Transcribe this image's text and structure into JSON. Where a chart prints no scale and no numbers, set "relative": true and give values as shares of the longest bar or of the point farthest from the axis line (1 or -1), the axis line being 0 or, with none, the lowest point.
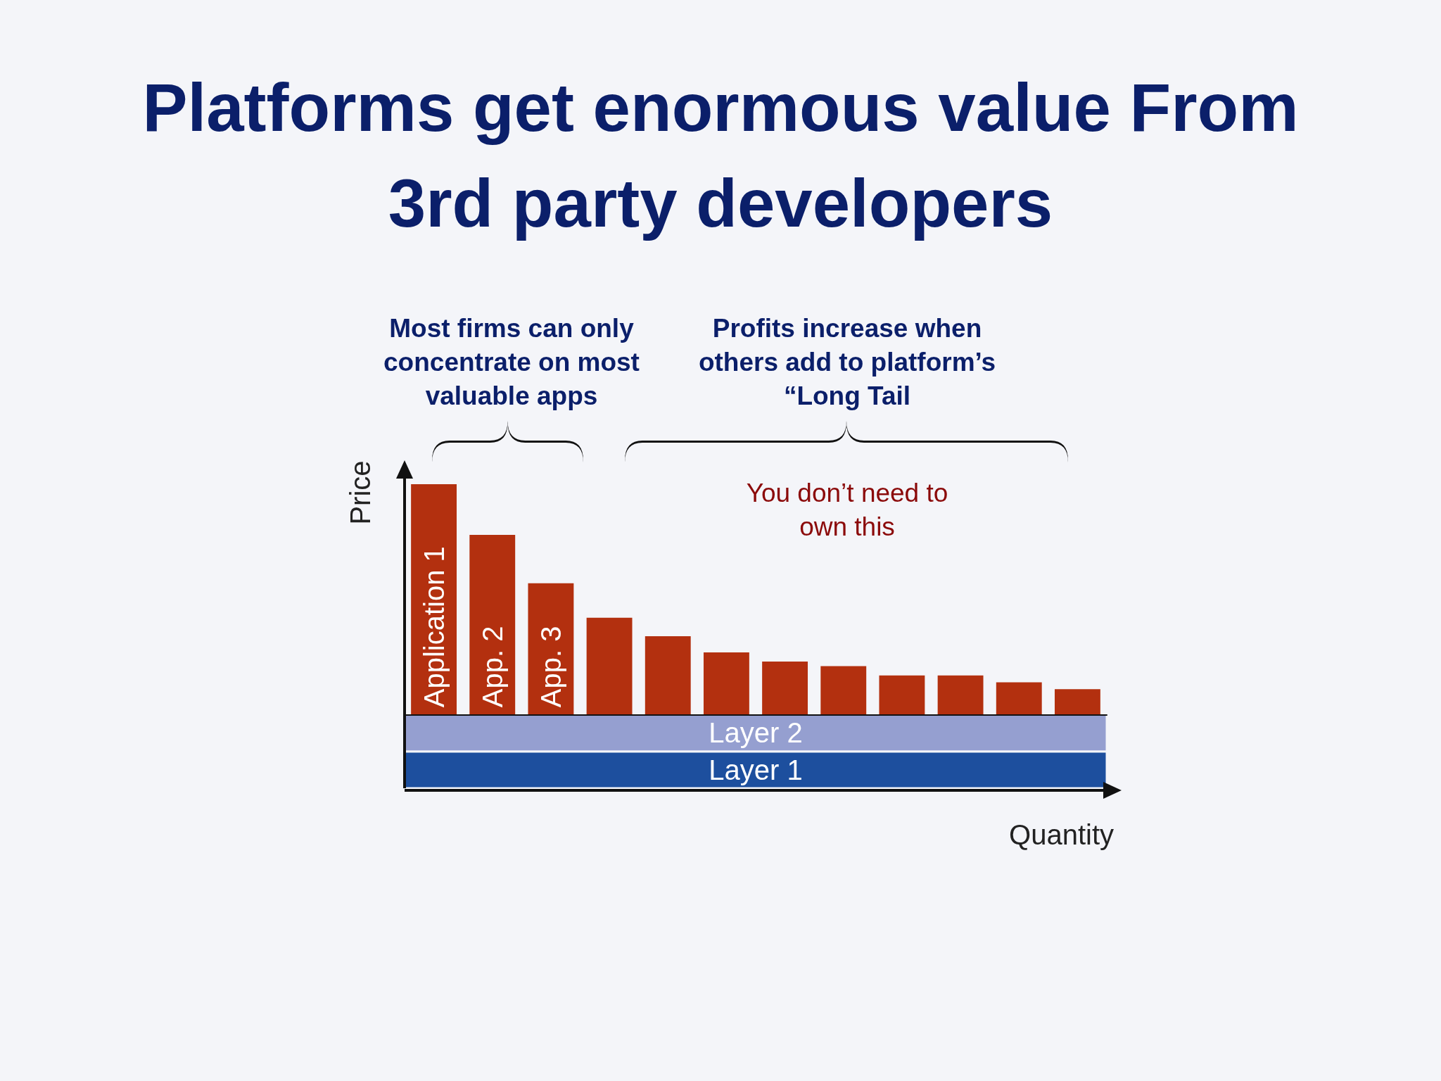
{
  "chart_data": {
    "type": "bar",
    "title": "Platforms get enormous value From 3rd party developers",
    "xlabel": "Quantity",
    "ylabel": "Price",
    "relative": true,
    "tick_labels": false,
    "categories": [
      "Application 1",
      "App. 2",
      "App. 3",
      null,
      null,
      null,
      null,
      null,
      null,
      null,
      null,
      null
    ],
    "values": [
      1,
      0.78,
      0.57,
      0.42,
      0.34,
      0.27,
      0.23,
      0.21,
      0.17,
      0.17,
      0.14,
      0.11
    ],
    "color": "#b3300f",
    "bands": [
      {
        "axis": "y",
        "from": -0.32,
        "to": -0.16,
        "label": "Layer 1",
        "color": "#1d4f9e"
      },
      {
        "axis": "y",
        "from": -0.16,
        "to": 0,
        "label": "Layer 2",
        "color": "#959fd0"
      }
    ],
    "annotations": [
      "Most firms can only concentrate on most valuable apps",
      "Profits increase when others add to platform’s “Long Tail",
      "You don’t need to own this"
    ]
  }
}
